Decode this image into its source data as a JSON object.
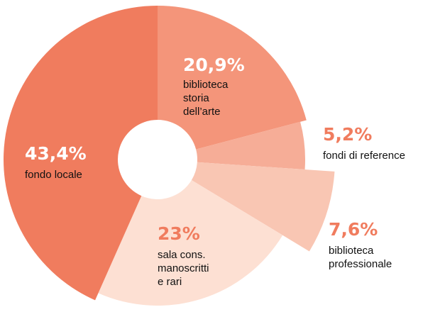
{
  "chart_data": {
    "type": "pie",
    "categories": [
      "biblioteca\nstoria\ndell’arte",
      "fondi di reference",
      "biblioteca\nprofessionale",
      "sala cons.\nmanoscritti\ne rari",
      "fondo locale"
    ],
    "values": [
      20.9,
      5.2,
      7.6,
      23,
      43.4
    ],
    "value_labels": [
      "20,9%",
      "5,2%",
      "7,6%",
      "23%",
      "43,4%"
    ],
    "colors": [
      "#f4957a",
      "#f6ad97",
      "#f9c6b3",
      "#fde0d3",
      "#f07c5e"
    ],
    "donut": true
  }
}
